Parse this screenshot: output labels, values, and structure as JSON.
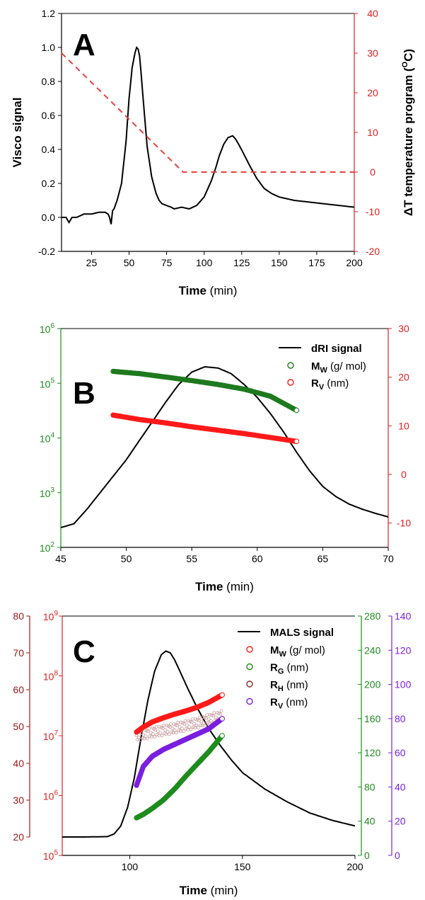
{
  "chart_data": [
    {
      "type": "line",
      "panel_label": "A",
      "xlabel_bold": "Time",
      "xlabel_unit": " (min)",
      "ylabel": "Visco signal",
      "y2label_main": "ΔT temperature program (",
      "y2label_sup": "O",
      "y2label_end": "C)",
      "xlim": [
        5,
        200
      ],
      "ylim": [
        -0.2,
        1.2
      ],
      "y2lim": [
        -20,
        40
      ],
      "x_ticks": [
        25,
        50,
        75,
        100,
        125,
        150,
        175,
        200
      ],
      "y_ticks": [
        "-0.2",
        "0.0",
        "0.2",
        "0.4",
        "0.6",
        "0.8",
        "1.0",
        "1.2"
      ],
      "y2_ticks": [
        "-20",
        "-10",
        "0",
        "10",
        "20",
        "30",
        "40"
      ],
      "colors": {
        "signal": "#000000",
        "temperature": "#e84040",
        "axis2": "#e02020"
      },
      "series": [
        {
          "axis": "left",
          "x": [
            5,
            8,
            10,
            12,
            15,
            20,
            25,
            30,
            34,
            36,
            37,
            38,
            39,
            40,
            42,
            45,
            48,
            50,
            52,
            54,
            55,
            56,
            57,
            58,
            60,
            62,
            65,
            68,
            70,
            72,
            75,
            78,
            80,
            85,
            90,
            95,
            100,
            105,
            108,
            110,
            113,
            116,
            119,
            121,
            123,
            126,
            130,
            135,
            140,
            145,
            150,
            160,
            170,
            180,
            190,
            200
          ],
          "y": [
            0.0,
            0.0,
            -0.03,
            0.0,
            0.0,
            0.02,
            0.02,
            0.03,
            0.03,
            0.02,
            0.0,
            -0.04,
            0.04,
            0.05,
            0.1,
            0.2,
            0.45,
            0.7,
            0.88,
            0.97,
            1.0,
            0.99,
            0.95,
            0.85,
            0.63,
            0.42,
            0.24,
            0.14,
            0.1,
            0.08,
            0.07,
            0.06,
            0.05,
            0.06,
            0.05,
            0.07,
            0.12,
            0.22,
            0.3,
            0.36,
            0.43,
            0.47,
            0.48,
            0.46,
            0.43,
            0.38,
            0.31,
            0.23,
            0.17,
            0.14,
            0.12,
            0.1,
            0.09,
            0.08,
            0.07,
            0.06
          ]
        },
        {
          "axis": "right",
          "style": "dashed",
          "x": [
            5,
            86,
            200
          ],
          "y": [
            30,
            0,
            0
          ]
        }
      ]
    },
    {
      "type": "scatter",
      "panel_label": "B",
      "xlabel_bold": "Time",
      "xlabel_unit": " (min)",
      "xlim": [
        45,
        70
      ],
      "ylim_log": [
        100,
        1000000
      ],
      "y2lim": [
        -15,
        30
      ],
      "x_ticks": [
        45,
        50,
        55,
        60,
        65,
        70
      ],
      "y_tick_exponents": [
        2,
        3,
        4,
        5,
        6
      ],
      "y2_ticks": [
        "-10",
        "0",
        "10",
        "20",
        "30"
      ],
      "colors": {
        "dri": "#000000",
        "mw": "#1e7a1e",
        "rv": "#ff1a1a",
        "axis1": "#1e8c1e",
        "axis2": "#e02020"
      },
      "legend": {
        "placement": "top-right",
        "entries": [
          {
            "label": "dRI signal",
            "marker": "line"
          },
          {
            "label": "M",
            "sub": "W",
            "label_end": " (g/ mol)",
            "marker": "circle-green"
          },
          {
            "label": "R",
            "sub": "V",
            "label_end": " (nm)",
            "marker": "circle-red"
          }
        ]
      },
      "series": [
        {
          "name": "dRI signal",
          "axis": "left-log",
          "x": [
            45,
            46,
            47,
            48,
            49,
            50,
            51,
            52,
            53,
            54,
            55,
            56,
            57,
            58,
            59,
            60,
            61,
            62,
            63,
            64,
            65,
            66,
            67,
            68,
            69,
            70
          ],
          "y": [
            230,
            270,
            500,
            1000,
            2000,
            4000,
            9000,
            20000,
            45000,
            95000,
            160000,
            200000,
            190000,
            150000,
            95000,
            55000,
            28000,
            13000,
            5500,
            2500,
            1300,
            850,
            620,
            500,
            420,
            360
          ]
        },
        {
          "name": "M",
          "axis": "left-log",
          "x": [
            49,
            51,
            53,
            55,
            57,
            59,
            61,
            63
          ],
          "y": [
            165000,
            150000,
            130000,
            112000,
            95000,
            78000,
            58000,
            32000
          ]
        },
        {
          "name": "R",
          "axis": "right",
          "x": [
            49,
            51,
            53,
            55,
            57,
            59,
            61,
            63
          ],
          "y": [
            12.2,
            11.3,
            10.6,
            9.8,
            9.1,
            8.4,
            7.6,
            6.8
          ]
        }
      ]
    },
    {
      "type": "scatter",
      "panel_label": "C",
      "xlabel_bold": "Time",
      "xlabel_unit": " (min)",
      "xlim": [
        70,
        200
      ],
      "ylim_left_linear": [
        20,
        80
      ],
      "ylim_left_log": [
        100000,
        1000000000
      ],
      "y2lim_green": [
        0,
        280
      ],
      "y2lim_purple": [
        0,
        140
      ],
      "x_ticks": [
        100,
        150,
        200
      ],
      "y_left_linear_ticks": [
        "20",
        "30",
        "40",
        "50",
        "60",
        "70",
        "80"
      ],
      "y_left_log_exponents": [
        5,
        6,
        7,
        8,
        9
      ],
      "y_green_ticks": [
        "0",
        "40",
        "80",
        "120",
        "160",
        "200",
        "240",
        "280"
      ],
      "y_purple_ticks": [
        "0",
        "20",
        "40",
        "60",
        "80",
        "100",
        "120",
        "140"
      ],
      "colors": {
        "mals": "#000000",
        "mw": "#ff1a1a",
        "rg": "#1e8c1e",
        "rh": "#c89a9a",
        "rh_marker": "#8b2a2a",
        "rv": "#7b1fe0",
        "axis_dark_red": "#a01818",
        "axis_red": "#e02020",
        "axis_green": "#1e8c1e",
        "axis_purple": "#7b1fe0"
      },
      "legend": {
        "placement": "top-right",
        "entries": [
          {
            "label": "MALS signal",
            "marker": "line"
          },
          {
            "label": "M",
            "sub": "W",
            "label_end": " (g/ mol)",
            "marker": "circle-red"
          },
          {
            "label": "R",
            "sub": "G",
            "label_end": " (nm)",
            "marker": "circle-green"
          },
          {
            "label": "R",
            "sub": "H",
            "label_end": " (nm)",
            "marker": "circle-darkred"
          },
          {
            "label": "R",
            "sub": "V",
            "label_end": " (nm)",
            "marker": "circle-purple"
          }
        ]
      },
      "series": [
        {
          "name": "MALS signal",
          "axis": "left-linear",
          "x": [
            70,
            80,
            90,
            93,
            96,
            99,
            102,
            105,
            108,
            111,
            114,
            116,
            118,
            120,
            123,
            126,
            130,
            135,
            140,
            145,
            150,
            160,
            170,
            180,
            190,
            200
          ],
          "y": [
            20,
            20,
            20.1,
            20.8,
            23,
            28,
            36,
            47,
            57,
            65,
            69.5,
            70.5,
            70,
            68,
            64,
            60,
            55,
            49.5,
            45,
            41,
            37.5,
            33,
            29.5,
            26.5,
            24.5,
            23
          ]
        },
        {
          "name": "M",
          "axis": "left-log",
          "x": [
            103,
            106,
            110,
            115,
            120,
            125,
            130,
            135,
            141
          ],
          "y": [
            11500000,
            14000000,
            17000000,
            20000000,
            23000000,
            26000000,
            30000000,
            36000000,
            48000000
          ]
        },
        {
          "name": "R",
          "axis": "right-green",
          "x": [
            103,
            106,
            110,
            115,
            120,
            125,
            130,
            135,
            141
          ],
          "y": [
            44,
            48,
            55,
            65,
            78,
            93,
            107,
            121,
            140
          ]
        },
        {
          "name": "R",
          "axis": "left-linear",
          "x": [
            103,
            106,
            110,
            115,
            120,
            125,
            130,
            135,
            141
          ],
          "y": [
            47.6,
            47.8,
            48.5,
            49,
            49.6,
            50.3,
            51,
            52,
            53
          ]
        },
        {
          "name": "R",
          "axis": "right-purple",
          "x": [
            103,
            106,
            110,
            115,
            120,
            125,
            130,
            135,
            141
          ],
          "y": [
            41,
            52,
            58,
            62,
            65,
            68,
            71,
            74,
            80
          ]
        }
      ]
    }
  ]
}
